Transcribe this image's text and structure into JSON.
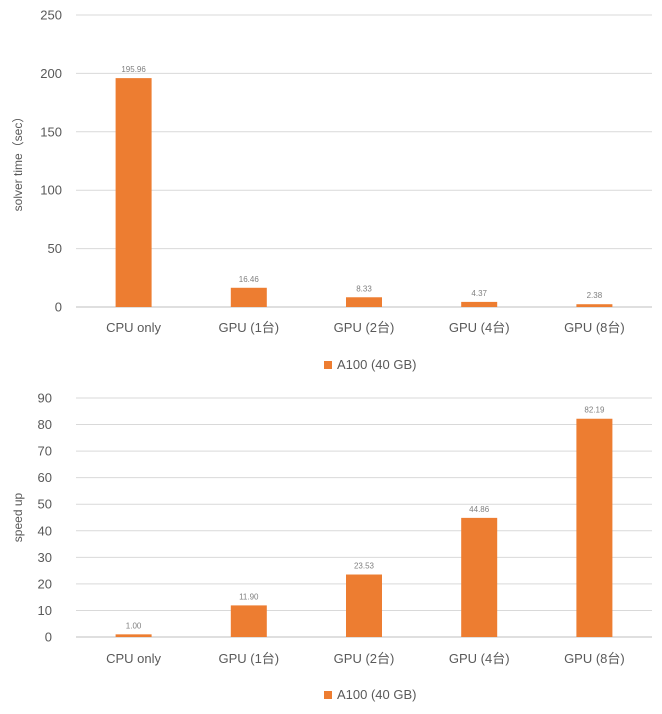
{
  "chart_data": [
    {
      "type": "bar",
      "title": "",
      "xlabel": "",
      "ylabel": "solver time（sec）",
      "ylim": [
        0,
        250
      ],
      "yticks": [
        0,
        50,
        100,
        150,
        200,
        250
      ],
      "grid": true,
      "legend_position": "bottom",
      "categories": [
        "CPU only",
        "GPU (1台)",
        "GPU (2台)",
        "GPU (4台)",
        "GPU (8台)"
      ],
      "series": [
        {
          "name": "A100 (40 GB)",
          "color": "#ED7D31",
          "values": [
            195.96,
            16.46,
            8.33,
            4.37,
            2.38
          ],
          "labels": [
            "195.96",
            "16.46",
            "8.33",
            "4.37",
            "2.38"
          ]
        }
      ]
    },
    {
      "type": "bar",
      "title": "",
      "xlabel": "",
      "ylabel": "speed up",
      "ylim": [
        0,
        90
      ],
      "yticks": [
        0,
        10,
        20,
        30,
        40,
        50,
        60,
        70,
        80,
        90
      ],
      "grid": true,
      "legend_position": "bottom",
      "categories": [
        "CPU only",
        "GPU (1台)",
        "GPU (2台)",
        "GPU (4台)",
        "GPU (8台)"
      ],
      "series": [
        {
          "name": "A100 (40 GB)",
          "color": "#ED7D31",
          "values": [
            1.0,
            11.9,
            23.53,
            44.86,
            82.19
          ],
          "labels": [
            "1.00",
            "11.90",
            "23.53",
            "44.86",
            "82.19"
          ]
        }
      ]
    }
  ]
}
